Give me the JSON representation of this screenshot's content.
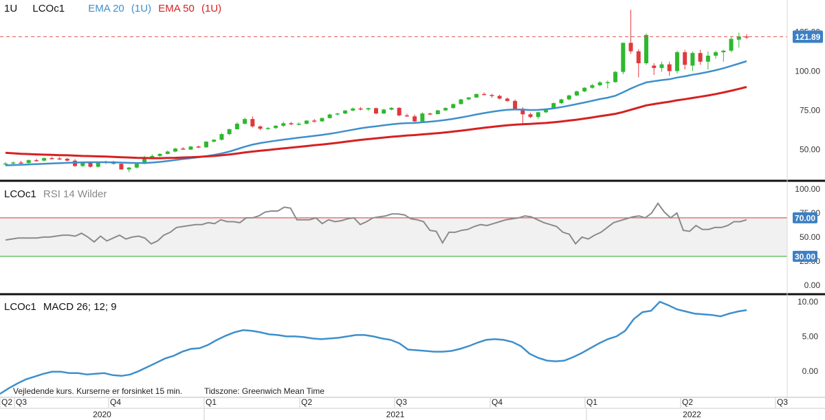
{
  "header": {
    "period": "1U",
    "symbol": "LCOc1",
    "ema20_label": "EMA 20",
    "ema20_period": "(1U)",
    "ema50_label": "EMA 50",
    "ema50_period": "(1U)"
  },
  "rsi_header": {
    "symbol": "LCOc1",
    "label": "RSI 14 Wilder"
  },
  "macd_header": {
    "symbol": "LCOc1",
    "label": "MACD 26; 12; 9"
  },
  "footer": {
    "delay_note": "Vejledende kurs. Kurserne er forsinket 15 min.",
    "timezone_note": "Tidszone: Greenwich Mean Time"
  },
  "colors": {
    "up": "#2eb82e",
    "down": "#e0393e",
    "ema20": "#3d8fcc",
    "ema50": "#d62020",
    "rsi": "#8a8a8a",
    "macd": "#3d8fcc",
    "rsi_high": "#e05a5a",
    "rsi_low": "#3cb43c"
  },
  "chart_data": [
    {
      "type": "candlestick",
      "title": "",
      "ylim": [
        35,
        140
      ],
      "yticks": [
        "50.00",
        "75.00",
        "100.00",
        "125.00"
      ],
      "last_price": "121.89",
      "last_price_value": 121.89,
      "candles": [
        [
          40.7,
          42.1,
          40.0,
          41.2
        ],
        [
          41.2,
          42.5,
          40.5,
          41.8
        ],
        [
          41.8,
          42.9,
          41.0,
          41.5
        ],
        [
          41.5,
          43.8,
          41.0,
          43.3
        ],
        [
          43.3,
          44.2,
          42.4,
          43.0
        ],
        [
          43.0,
          45.1,
          42.6,
          44.6
        ],
        [
          44.6,
          45.5,
          43.8,
          44.4
        ],
        [
          44.4,
          45.3,
          43.4,
          44.2
        ],
        [
          44.2,
          44.8,
          42.5,
          43.0
        ],
        [
          43.0,
          44.0,
          39.0,
          39.6
        ],
        [
          39.6,
          42.3,
          39.0,
          42.0
        ],
        [
          42.0,
          42.5,
          38.6,
          39.1
        ],
        [
          39.1,
          42.0,
          38.6,
          41.6
        ],
        [
          41.6,
          43.0,
          40.8,
          42.5
        ],
        [
          42.5,
          42.8,
          40.5,
          41.0
        ],
        [
          41.0,
          41.8,
          37.2,
          37.4
        ],
        [
          37.4,
          39.0,
          35.7,
          38.6
        ],
        [
          38.6,
          41.5,
          38.0,
          41.0
        ],
        [
          41.0,
          46.0,
          40.8,
          45.2
        ],
        [
          45.2,
          47.0,
          44.6,
          46.0
        ],
        [
          46.0,
          47.7,
          45.5,
          47.3
        ],
        [
          47.3,
          49.4,
          47.0,
          48.8
        ],
        [
          48.8,
          51.2,
          48.3,
          50.7
        ],
        [
          50.7,
          51.6,
          50.2,
          50.0
        ],
        [
          50.0,
          52.3,
          49.8,
          52.0
        ],
        [
          52.0,
          52.6,
          51.0,
          51.5
        ],
        [
          51.5,
          55.4,
          51.2,
          55.1
        ],
        [
          55.1,
          56.8,
          54.6,
          56.3
        ],
        [
          56.3,
          60.6,
          55.8,
          59.9
        ],
        [
          59.9,
          63.4,
          59.2,
          63.0
        ],
        [
          63.0,
          67.5,
          62.8,
          66.5
        ],
        [
          66.5,
          70.4,
          66.0,
          69.5
        ],
        [
          69.5,
          71.2,
          64.0,
          64.8
        ],
        [
          64.8,
          65.3,
          62.3,
          63.3
        ],
        [
          63.3,
          64.3,
          62.5,
          63.8
        ],
        [
          63.8,
          65.7,
          63.0,
          65.2
        ],
        [
          65.2,
          67.8,
          64.4,
          66.8
        ],
        [
          66.8,
          67.7,
          65.6,
          66.1
        ],
        [
          66.1,
          67.5,
          65.4,
          66.5
        ],
        [
          66.5,
          68.8,
          66.0,
          68.5
        ],
        [
          68.5,
          69.5,
          67.2,
          68.0
        ],
        [
          68.0,
          70.5,
          67.8,
          70.1
        ],
        [
          70.1,
          72.8,
          69.8,
          72.4
        ],
        [
          72.4,
          73.4,
          71.8,
          73.0
        ],
        [
          73.0,
          75.3,
          72.6,
          74.9
        ],
        [
          74.9,
          76.8,
          74.4,
          76.2
        ],
        [
          76.2,
          77.1,
          75.0,
          75.6
        ],
        [
          75.6,
          76.8,
          74.8,
          76.4
        ],
        [
          76.4,
          76.8,
          72.5,
          73.0
        ],
        [
          73.0,
          76.0,
          72.8,
          75.5
        ],
        [
          75.5,
          77.0,
          75.0,
          76.6
        ],
        [
          76.6,
          77.0,
          71.3,
          71.8
        ],
        [
          71.8,
          72.9,
          70.9,
          71.2
        ],
        [
          71.2,
          72.4,
          67.5,
          68.0
        ],
        [
          68.0,
          73.8,
          67.8,
          73.0
        ],
        [
          73.0,
          73.5,
          72.2,
          72.6
        ],
        [
          72.6,
          75.4,
          72.4,
          75.0
        ],
        [
          75.0,
          77.0,
          74.6,
          76.5
        ],
        [
          76.5,
          79.4,
          76.0,
          79.0
        ],
        [
          79.0,
          82.3,
          78.8,
          82.0
        ],
        [
          82.0,
          83.5,
          81.5,
          83.2
        ],
        [
          83.2,
          85.8,
          82.8,
          85.4
        ],
        [
          85.4,
          86.4,
          84.6,
          84.8
        ],
        [
          84.8,
          85.6,
          83.0,
          84.2
        ],
        [
          84.2,
          85.0,
          82.0,
          82.5
        ],
        [
          82.5,
          83.2,
          80.5,
          81.0
        ],
        [
          81.0,
          82.0,
          75.5,
          76.0
        ],
        [
          76.0,
          77.0,
          66.0,
          72.5
        ],
        [
          72.5,
          73.6,
          70.0,
          70.8
        ],
        [
          70.8,
          74.2,
          69.5,
          73.8
        ],
        [
          73.8,
          76.4,
          73.2,
          76.0
        ],
        [
          76.0,
          80.0,
          75.8,
          79.6
        ],
        [
          79.6,
          82.4,
          79.0,
          82.0
        ],
        [
          82.0,
          85.0,
          81.4,
          84.5
        ],
        [
          84.5,
          87.6,
          84.0,
          87.1
        ],
        [
          87.1,
          89.8,
          86.5,
          89.4
        ],
        [
          89.4,
          91.8,
          88.8,
          91.0
        ],
        [
          91.0,
          93.6,
          90.3,
          92.8
        ],
        [
          92.8,
          94.0,
          89.0,
          93.0
        ],
        [
          93.0,
          100.0,
          92.5,
          99.5
        ],
        [
          99.5,
          118.0,
          98.0,
          118.0
        ],
        [
          118.0,
          139.0,
          111.0,
          112.6
        ],
        [
          112.6,
          114.0,
          96.0,
          105.0
        ],
        [
          105.0,
          124.0,
          104.0,
          123.0
        ],
        [
          103.5,
          105.0,
          97.5,
          102.0
        ],
        [
          102.0,
          106.0,
          99.5,
          104.3
        ],
        [
          104.3,
          106.0,
          97.0,
          100.0
        ],
        [
          100.0,
          113.0,
          98.5,
          112.0
        ],
        [
          112.0,
          113.5,
          101.0,
          104.0
        ],
        [
          103.5,
          112.5,
          100.0,
          111.5
        ],
        [
          111.5,
          113.5,
          104.0,
          106.0
        ],
        [
          106.0,
          112.5,
          101.0,
          109.8
        ],
        [
          109.8,
          113.0,
          108.0,
          112.0
        ],
        [
          112.0,
          113.5,
          106.0,
          113.0
        ],
        [
          113.0,
          121.5,
          112.0,
          120.5
        ],
        [
          120.0,
          124.5,
          115.0,
          122.0
        ],
        [
          122.0,
          123.5,
          120.5,
          121.89
        ]
      ],
      "series": [
        {
          "name": "EMA 20",
          "values": [
            40.0,
            40.2,
            40.4,
            40.6,
            40.8,
            41.0,
            41.2,
            41.4,
            41.6,
            41.8,
            41.9,
            42.0,
            42.0,
            42.0,
            41.9,
            41.8,
            41.6,
            41.5,
            41.5,
            41.8,
            42.2,
            42.8,
            43.4,
            44.0,
            44.6,
            45.2,
            45.9,
            46.7,
            47.6,
            48.8,
            50.3,
            51.9,
            53.2,
            54.2,
            55.0,
            55.7,
            56.4,
            57.0,
            57.6,
            58.2,
            58.8,
            59.4,
            60.1,
            60.9,
            61.8,
            62.7,
            63.6,
            64.3,
            64.9,
            65.5,
            66.1,
            66.6,
            66.9,
            67.0,
            67.4,
            67.8,
            68.3,
            68.9,
            69.6,
            70.5,
            71.4,
            72.4,
            73.3,
            74.1,
            74.8,
            75.4,
            75.6,
            75.5,
            75.2,
            75.3,
            75.7,
            76.3,
            77.1,
            78.0,
            79.0,
            80.0,
            81.1,
            82.2,
            83.1,
            84.3,
            86.5,
            88.9,
            91.0,
            92.8,
            93.6,
            94.3,
            94.8,
            95.9,
            96.7,
            97.7,
            98.5,
            99.5,
            100.6,
            101.8,
            103.3,
            104.8,
            106.3
          ]
        },
        {
          "name": "EMA 50",
          "values": [
            48.0,
            47.7,
            47.4,
            47.2,
            47.0,
            46.8,
            46.7,
            46.5,
            46.4,
            46.2,
            46.0,
            45.9,
            45.7,
            45.6,
            45.4,
            45.2,
            45.0,
            44.8,
            44.7,
            44.6,
            44.6,
            44.7,
            44.8,
            45.0,
            45.2,
            45.4,
            45.7,
            46.0,
            46.4,
            46.9,
            47.5,
            48.2,
            48.8,
            49.3,
            49.8,
            50.3,
            50.8,
            51.3,
            51.8,
            52.3,
            52.8,
            53.3,
            53.8,
            54.4,
            55.0,
            55.6,
            56.2,
            56.7,
            57.2,
            57.7,
            58.2,
            58.6,
            59.0,
            59.3,
            59.7,
            60.1,
            60.5,
            61.0,
            61.5,
            62.1,
            62.7,
            63.3,
            63.9,
            64.5,
            65.0,
            65.5,
            65.9,
            66.2,
            66.4,
            66.7,
            67.0,
            67.4,
            67.9,
            68.5,
            69.1,
            69.8,
            70.5,
            71.3,
            72.0,
            72.8,
            74.0,
            75.4,
            76.8,
            78.2,
            79.0,
            79.8,
            80.5,
            81.4,
            82.1,
            82.9,
            83.7,
            84.5,
            85.4,
            86.4,
            87.5,
            88.7,
            89.9
          ]
        }
      ]
    },
    {
      "type": "line",
      "title": "RSI 14 Wilder",
      "ylim": [
        -5,
        102
      ],
      "yticks": [
        "0.00",
        "25.00",
        "50.00",
        "75.00",
        "100.00"
      ],
      "levels": [
        {
          "label": "70.00",
          "value": 70
        },
        {
          "label": "30.00",
          "value": 30
        }
      ],
      "series": [
        {
          "name": "RSI 14 Wilder",
          "values": [
            47,
            48,
            49,
            49,
            49,
            49,
            50,
            50,
            51,
            52,
            52,
            51,
            54,
            50,
            45,
            51,
            46,
            49,
            52,
            48,
            50,
            51,
            49,
            43,
            46,
            52,
            55,
            60,
            61,
            62,
            63,
            63,
            65,
            64,
            68,
            66,
            66,
            65,
            70,
            70,
            72,
            76,
            77,
            77,
            81,
            80,
            68,
            68,
            68,
            70,
            64,
            68,
            66,
            67,
            69,
            70,
            63,
            66,
            70,
            71,
            72,
            74,
            74,
            73,
            69,
            68,
            66,
            57,
            56,
            44,
            55,
            55,
            57,
            58,
            61,
            63,
            62,
            64,
            66,
            68,
            69,
            70,
            72,
            71,
            68,
            65,
            63,
            61,
            55,
            53,
            43,
            50,
            48,
            52,
            55,
            60,
            65,
            67,
            69,
            71,
            72,
            70,
            75,
            85,
            76,
            70,
            75,
            57,
            56,
            62,
            58,
            58,
            60,
            60,
            62,
            66,
            66,
            68
          ]
        }
      ]
    },
    {
      "type": "line",
      "title": "MACD 26; 12; 9",
      "ylim": [
        -3.5,
        10.5
      ],
      "yticks": [
        "0.00",
        "5.00",
        "10.00"
      ],
      "series": [
        {
          "name": "MACD 26; 12; 9",
          "values": [
            -3.3,
            -2.5,
            -1.8,
            -1.2,
            -0.8,
            -0.4,
            -0.1,
            -0.1,
            -0.3,
            -0.3,
            -0.5,
            -0.4,
            -0.3,
            -0.6,
            -0.7,
            -0.5,
            0.0,
            0.6,
            1.2,
            1.8,
            2.2,
            2.8,
            3.2,
            3.3,
            3.8,
            4.5,
            5.1,
            5.6,
            5.9,
            5.8,
            5.6,
            5.3,
            5.2,
            5.0,
            5.0,
            4.9,
            4.7,
            4.6,
            4.7,
            4.8,
            5.0,
            5.2,
            5.2,
            5.0,
            4.7,
            4.5,
            4.0,
            3.1,
            3.0,
            2.9,
            2.8,
            2.8,
            2.9,
            3.2,
            3.6,
            4.1,
            4.5,
            4.6,
            4.5,
            4.2,
            3.6,
            2.5,
            1.9,
            1.5,
            1.4,
            1.5,
            2.0,
            2.6,
            3.3,
            4.0,
            4.6,
            5.0,
            5.8,
            7.5,
            8.5,
            8.7,
            10.0,
            9.5,
            8.9,
            8.6,
            8.3,
            8.2,
            8.1,
            7.9,
            8.3,
            8.6,
            8.8
          ]
        }
      ]
    }
  ],
  "x_axis": {
    "quarters": [
      "Q2",
      "Q3",
      "Q4",
      "Q1",
      "Q2",
      "Q3",
      "Q4",
      "Q1",
      "Q2",
      "Q3"
    ],
    "years": [
      "2020",
      "2021",
      "2022"
    ]
  }
}
